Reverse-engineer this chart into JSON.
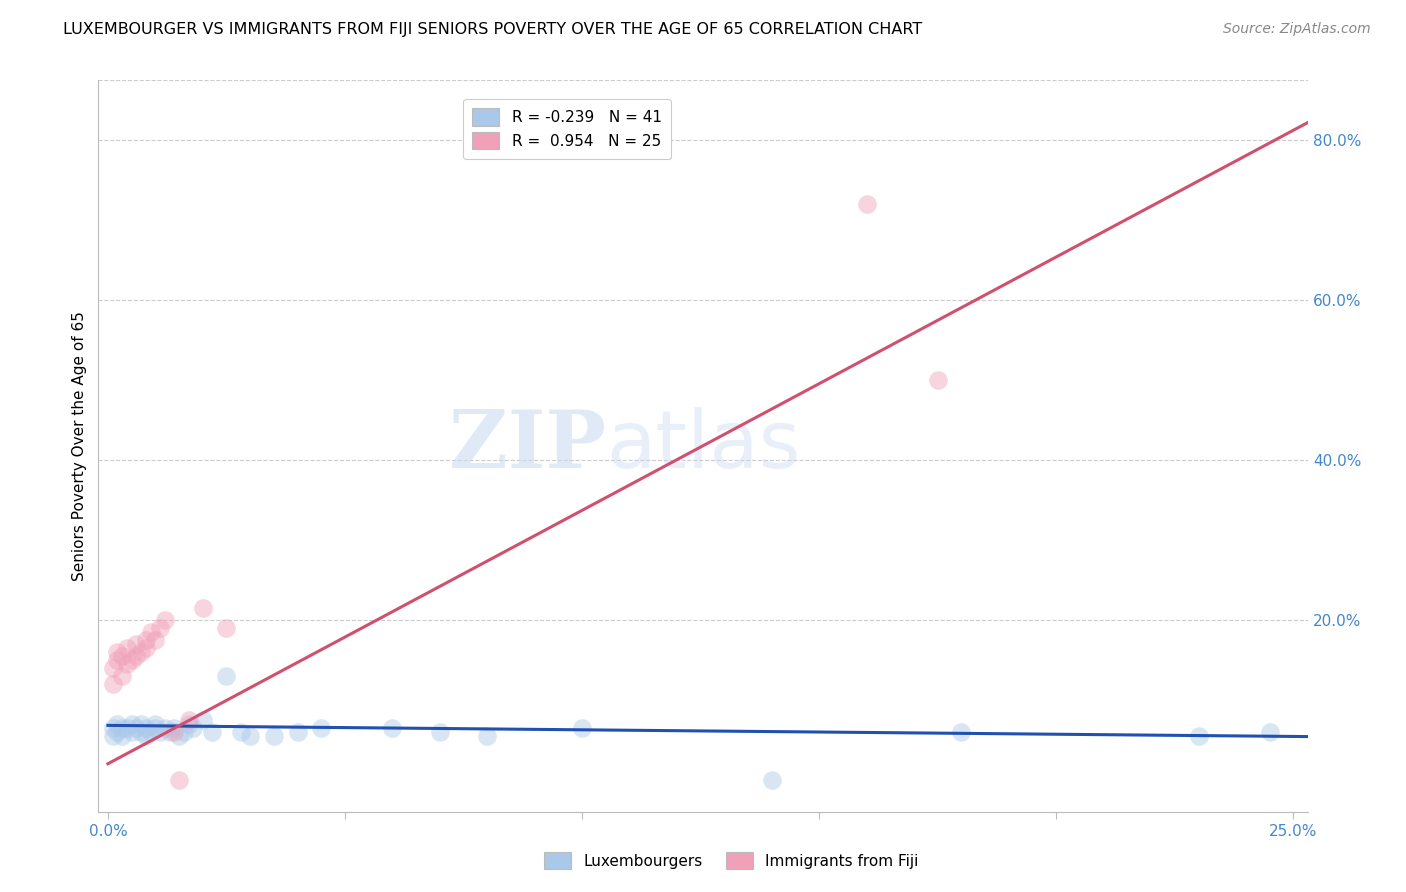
{
  "title": "LUXEMBOURGER VS IMMIGRANTS FROM FIJI SENIORS POVERTY OVER THE AGE OF 65 CORRELATION CHART",
  "source": "Source: ZipAtlas.com",
  "xlabel_ticks": [
    "0.0%",
    "",
    "",
    "",
    "",
    "25.0%"
  ],
  "xlabel_vals": [
    0.0,
    0.05,
    0.1,
    0.15,
    0.2,
    0.25
  ],
  "ylabel_ticks": [
    "80.0%",
    "60.0%",
    "40.0%",
    "20.0%"
  ],
  "ylabel_vals": [
    0.8,
    0.6,
    0.4,
    0.2
  ],
  "ylabel_label": "Seniors Poverty Over the Age of 65",
  "xlim": [
    -0.002,
    0.253
  ],
  "ylim": [
    -0.04,
    0.875
  ],
  "watermark_zip": "ZIP",
  "watermark_atlas": "atlas",
  "legend_line1": "R = -0.239   N = 41",
  "legend_line2": "R =  0.954   N = 25",
  "blue_scatter_x": [
    0.001,
    0.001,
    0.002,
    0.002,
    0.003,
    0.003,
    0.004,
    0.005,
    0.005,
    0.006,
    0.007,
    0.007,
    0.008,
    0.008,
    0.009,
    0.01,
    0.01,
    0.011,
    0.012,
    0.013,
    0.014,
    0.015,
    0.016,
    0.017,
    0.018,
    0.02,
    0.022,
    0.025,
    0.028,
    0.03,
    0.035,
    0.04,
    0.045,
    0.06,
    0.07,
    0.08,
    0.1,
    0.14,
    0.18,
    0.23,
    0.245
  ],
  "blue_scatter_y": [
    0.055,
    0.065,
    0.06,
    0.07,
    0.065,
    0.055,
    0.065,
    0.06,
    0.07,
    0.065,
    0.06,
    0.07,
    0.065,
    0.055,
    0.06,
    0.065,
    0.07,
    0.06,
    0.065,
    0.06,
    0.065,
    0.055,
    0.06,
    0.07,
    0.065,
    0.075,
    0.06,
    0.13,
    0.06,
    0.055,
    0.055,
    0.06,
    0.065,
    0.065,
    0.06,
    0.055,
    0.065,
    0.0,
    0.06,
    0.055,
    0.06
  ],
  "pink_scatter_x": [
    0.001,
    0.001,
    0.002,
    0.002,
    0.003,
    0.003,
    0.004,
    0.004,
    0.005,
    0.006,
    0.006,
    0.007,
    0.008,
    0.008,
    0.009,
    0.01,
    0.011,
    0.012,
    0.014,
    0.015,
    0.017,
    0.02,
    0.025,
    0.16,
    0.175
  ],
  "pink_scatter_y": [
    0.12,
    0.14,
    0.15,
    0.16,
    0.13,
    0.155,
    0.145,
    0.165,
    0.15,
    0.17,
    0.155,
    0.16,
    0.175,
    0.165,
    0.185,
    0.175,
    0.19,
    0.2,
    0.06,
    0.0,
    0.075,
    0.215,
    0.19,
    0.72,
    0.5
  ],
  "blue_line_x": [
    0.0,
    0.253
  ],
  "blue_line_y": [
    0.068,
    0.054
  ],
  "pink_line_x": [
    0.0,
    0.253
  ],
  "pink_line_y": [
    0.02,
    0.822
  ],
  "scatter_size": 180,
  "scatter_alpha": 0.45,
  "blue_color": "#aac8e8",
  "pink_color": "#f0a0b8",
  "blue_line_color": "#2050b0",
  "pink_line_color": "#d05070",
  "grid_color": "#cccccc",
  "grid_linestyle": "--",
  "background_color": "#ffffff",
  "title_fontsize": 11.5,
  "axis_tick_color": "#4488cc",
  "axis_tick_fontsize": 11
}
